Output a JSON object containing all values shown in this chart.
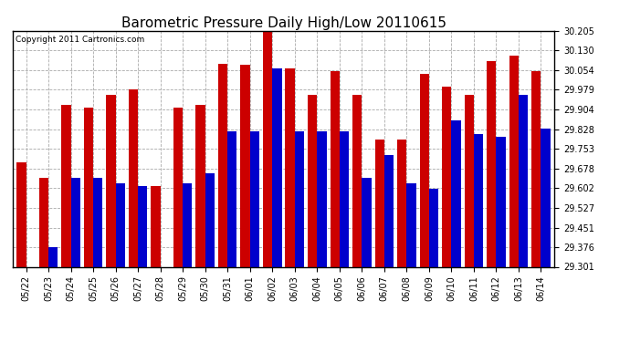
{
  "title": "Barometric Pressure Daily High/Low 20110615",
  "copyright": "Copyright 2011 Cartronics.com",
  "dates": [
    "05/22",
    "05/23",
    "05/24",
    "05/25",
    "05/26",
    "05/27",
    "05/28",
    "05/29",
    "05/30",
    "05/31",
    "06/01",
    "06/02",
    "06/03",
    "06/04",
    "06/05",
    "06/06",
    "06/07",
    "06/08",
    "06/09",
    "06/10",
    "06/11",
    "06/12",
    "06/13",
    "06/14"
  ],
  "highs": [
    29.7,
    29.64,
    29.92,
    29.91,
    29.96,
    29.98,
    29.61,
    29.91,
    29.92,
    30.08,
    30.075,
    30.21,
    30.06,
    29.96,
    30.05,
    29.96,
    29.79,
    29.79,
    30.04,
    29.99,
    29.96,
    30.09,
    30.11,
    30.05
  ],
  "lows": [
    29.301,
    29.376,
    29.64,
    29.64,
    29.62,
    29.61,
    29.301,
    29.62,
    29.66,
    29.82,
    29.82,
    30.06,
    29.82,
    29.82,
    29.82,
    29.64,
    29.73,
    29.62,
    29.601,
    29.86,
    29.81,
    29.8,
    29.96,
    29.83
  ],
  "high_color": "#cc0000",
  "low_color": "#0000cc",
  "background_color": "#ffffff",
  "plot_bg_color": "#ffffff",
  "grid_color": "#aaaaaa",
  "ymin": 29.301,
  "ymax": 30.205,
  "yticks": [
    29.301,
    29.376,
    29.451,
    29.527,
    29.602,
    29.678,
    29.753,
    29.828,
    29.904,
    29.979,
    30.054,
    30.13,
    30.205
  ],
  "title_fontsize": 11,
  "tick_fontsize": 7,
  "copyright_fontsize": 6.5
}
